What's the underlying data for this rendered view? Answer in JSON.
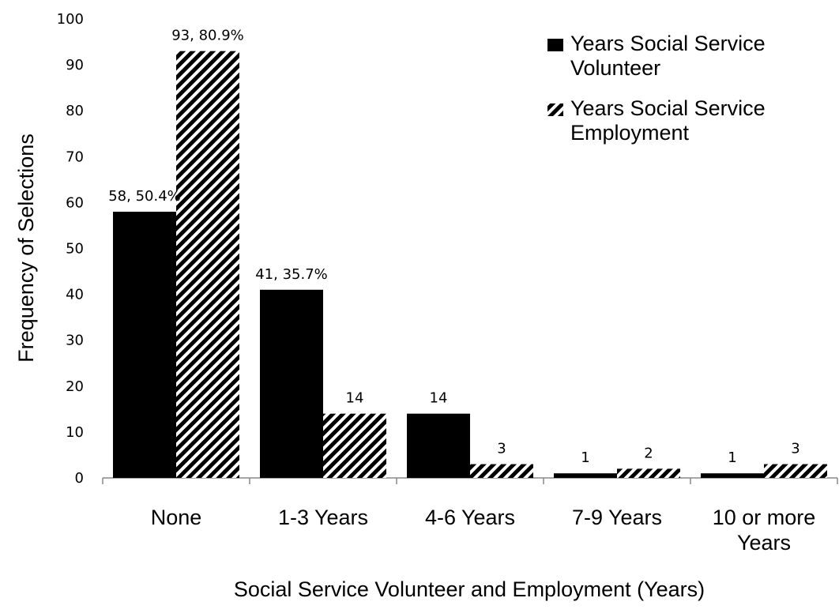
{
  "chart_data": {
    "type": "bar",
    "title": "",
    "xlabel": "Social Service Volunteer and Employment (Years)",
    "ylabel": "Frequency of Selections",
    "ylim": [
      0,
      100
    ],
    "yticks": [
      0,
      10,
      20,
      30,
      40,
      50,
      60,
      70,
      80,
      90,
      100
    ],
    "categories": [
      [
        "None"
      ],
      [
        "1-3 Years"
      ],
      [
        "4-6 Years"
      ],
      [
        "7-9 Years"
      ],
      [
        "10 or more",
        "Years"
      ]
    ],
    "series": [
      {
        "name": "Years Social Service Volunteer",
        "legend_lines": [
          "Years Social Service",
          "Volunteer"
        ],
        "pattern": "solid",
        "color": "#000000",
        "values": [
          58,
          41,
          14,
          1,
          1
        ],
        "data_labels": [
          "58, 50.4%",
          "41, 35.7%",
          "14",
          "1",
          "1"
        ]
      },
      {
        "name": "Years Social Service Employment",
        "legend_lines": [
          "Years Social Service",
          "Employment"
        ],
        "pattern": "diagonal-stripes",
        "color": "#000000",
        "values": [
          93,
          14,
          3,
          2,
          3
        ],
        "data_labels": [
          "93, 80.9%",
          "14",
          "3",
          "2",
          "3"
        ]
      }
    ],
    "grid": false,
    "legend_position": "top-right"
  }
}
